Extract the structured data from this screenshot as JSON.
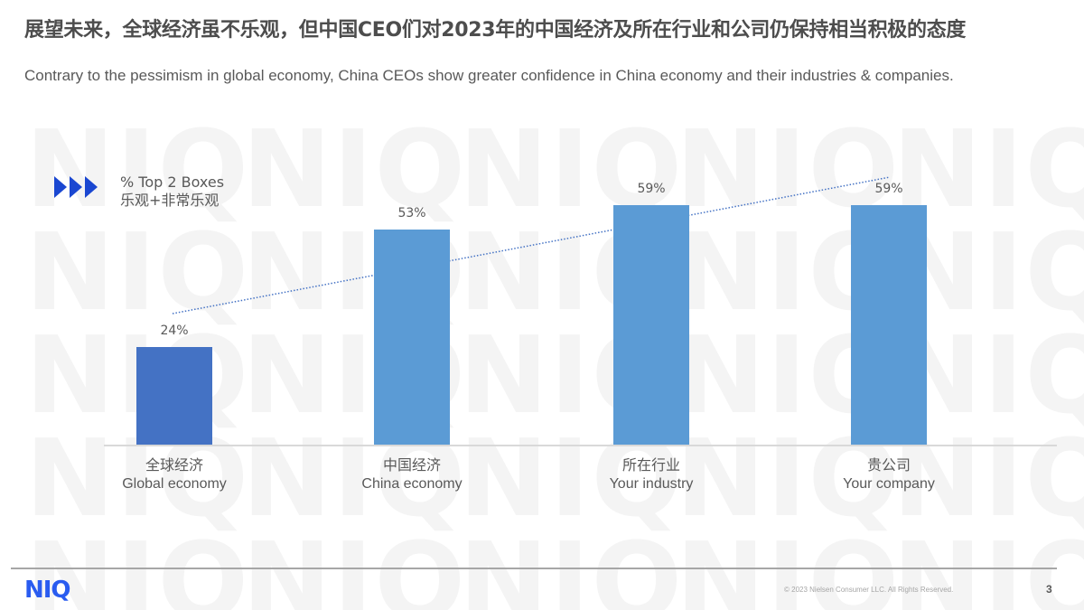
{
  "slide": {
    "title": "展望未来，全球经济虽不乐观，但中国CEO们对2023年的中国经济及所在行业和公司仍保持相当积极的态度",
    "subtitle": "Contrary to the pessimism in global economy, China CEOs show greater confidence in China economy and their industries & companies.",
    "legend": {
      "icon": "triple-arrow-icon",
      "line1": "% Top 2 Boxes",
      "line2": "乐观+非常乐观",
      "arrow_color": "#1a47d1"
    },
    "watermark_text": "NIQ",
    "footer": {
      "logo": "NIQ",
      "copyright": "© 2023 Nielsen Consumer LLC. All Rights Reserved.",
      "page_number": "3"
    }
  },
  "chart_data": {
    "type": "bar",
    "title": "% Top 2 Boxes 乐观+非常乐观",
    "categories": [
      "全球经济 Global economy",
      "中国经济 China economy",
      "所在行业 Your industry",
      "贵公司 Your company"
    ],
    "categories_cn": [
      "全球经济",
      "中国经济",
      "所在行业",
      "贵公司"
    ],
    "categories_en": [
      "Global economy",
      "China economy",
      "Your industry",
      "Your company"
    ],
    "values": [
      24,
      53,
      59,
      59
    ],
    "value_labels": [
      "24%",
      "53%",
      "59%",
      "59%"
    ],
    "colors": [
      "#4472c4",
      "#5b9bd5",
      "#5b9bd5",
      "#5b9bd5"
    ],
    "trendline": {
      "type": "linear",
      "style": "dotted",
      "color": "#4472c4"
    },
    "xlabel": "",
    "ylabel": "",
    "ylim": [
      0,
      100
    ],
    "grid": false,
    "legend_position": "top-left"
  }
}
